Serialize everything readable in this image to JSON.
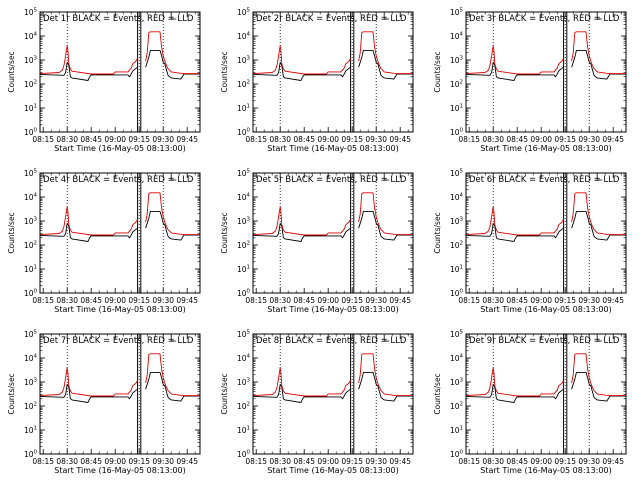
{
  "chart_data": [
    {
      "type": "line",
      "title": "Det 1r BLACK = Events, RED = LLD"
    },
    {
      "type": "line",
      "title": "Det 2r BLACK = Events, RED = LLD"
    },
    {
      "type": "line",
      "title": "Det 3r BLACK = Events, RED = LLD"
    },
    {
      "type": "line",
      "title": "Det 4r BLACK = Events, RED = LLD"
    },
    {
      "type": "line",
      "title": "Det 5r BLACK = Events, RED = LLD"
    },
    {
      "type": "line",
      "title": "Det 6r BLACK = Events, RED = LLD"
    },
    {
      "type": "line",
      "title": "Det 7r BLACK = Events, RED = LLD"
    },
    {
      "type": "line",
      "title": "Det 8r BLACK = Events, RED = LLD"
    },
    {
      "type": "line",
      "title": "Det 9r BLACK = Events, RED = LLD"
    }
  ],
  "common": {
    "xlabel": "Start Time (16-May-05 08:13:00)",
    "ylabel": "Counts/sec",
    "xticks": [
      "08:15",
      "08:30",
      "08:45",
      "09:00",
      "09:15",
      "09:30",
      "09:45"
    ],
    "xtick_minutes": [
      2,
      17,
      32,
      47,
      62,
      77,
      92
    ],
    "xlim_minutes": [
      0,
      100
    ],
    "yscale": "log",
    "ylim": [
      1,
      100000
    ],
    "ytick_exponents": [
      "0",
      "1",
      "2",
      "3",
      "4",
      "5"
    ],
    "ytick_base": "10",
    "dotted_lines_minutes": [
      17,
      62,
      77
    ],
    "solid_bars_minutes": [
      61,
      63
    ],
    "series_colors": {
      "events": "#000000",
      "lld": "#e00000"
    },
    "events": {
      "x": [
        0,
        15,
        16,
        17,
        18,
        19,
        20,
        30,
        31,
        32,
        55,
        56,
        57,
        58,
        60,
        61,
        62,
        63,
        64,
        65,
        66,
        67,
        68,
        69,
        75,
        76,
        77,
        78,
        79,
        80,
        81,
        82,
        88,
        90,
        100
      ],
      "y": [
        250,
        230,
        300,
        800,
        600,
        200,
        180,
        140,
        200,
        240,
        240,
        200,
        260,
        350,
        450,
        500,
        0,
        0,
        0,
        0,
        500,
        800,
        1300,
        2500,
        2500,
        1500,
        800,
        700,
        400,
        230,
        200,
        180,
        160,
        260,
        260
      ]
    },
    "lld": {
      "x": [
        0,
        12,
        14,
        15,
        16,
        16.5,
        17,
        17.5,
        18,
        19,
        20,
        32,
        46,
        47,
        55,
        57,
        58,
        60,
        61,
        62,
        63,
        64,
        65,
        66,
        67,
        68,
        69,
        75,
        76,
        77,
        78,
        79,
        80,
        81,
        82,
        88,
        90,
        100
      ],
      "y": [
        270,
        300,
        380,
        600,
        1500,
        2500,
        4000,
        2200,
        700,
        420,
        340,
        260,
        260,
        320,
        320,
        460,
        700,
        900,
        1200,
        0,
        0,
        0,
        0,
        900,
        2000,
        14000,
        15000,
        15000,
        3500,
        1500,
        900,
        600,
        440,
        380,
        320,
        280,
        270,
        270
      ]
    }
  }
}
